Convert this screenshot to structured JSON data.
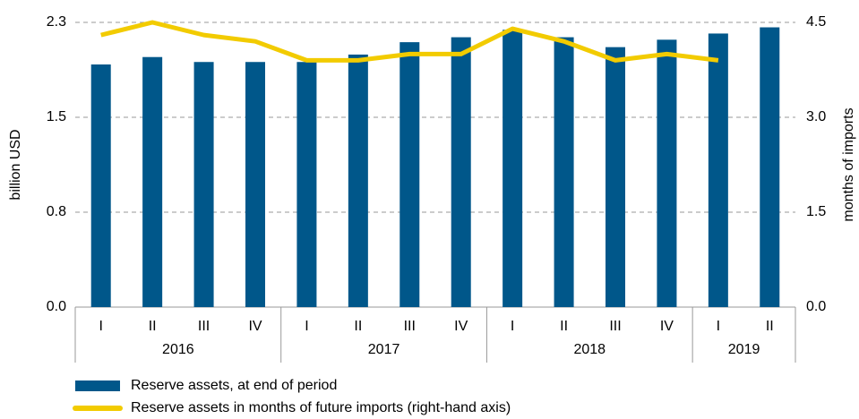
{
  "chart_data": {
    "type": "bar",
    "ylabel": "billion USD",
    "y2label": "months of imports",
    "categories": [
      "I",
      "II",
      "III",
      "IV",
      "I",
      "II",
      "III",
      "IV",
      "I",
      "II",
      "III",
      "IV",
      "I",
      "II"
    ],
    "group_labels": [
      "2016",
      "2017",
      "2018",
      "2019"
    ],
    "ylim": [
      0,
      2.3
    ],
    "yticks": [
      {
        "value": 0,
        "label": "0.0"
      },
      {
        "value": 0.7667,
        "label": "0.8"
      },
      {
        "value": 1.5333,
        "label": "1.5"
      },
      2.3
    ],
    "y2lim": [
      0,
      4.5
    ],
    "y2ticks": [
      {
        "value": 0,
        "label": "0.0"
      },
      1.5,
      {
        "value": 3,
        "label": "3.0"
      },
      4.5
    ],
    "grid": true,
    "series": [
      {
        "name": "Reserve assets, at end of period",
        "type": "bar",
        "color": "#00578a",
        "values": [
          1.96,
          2.02,
          1.98,
          1.98,
          1.98,
          2.04,
          2.14,
          2.18,
          2.24,
          2.18,
          2.1,
          2.16,
          2.21,
          2.26
        ]
      },
      {
        "name": "Reserve assets in months of future imports (right-hand axis)",
        "type": "line",
        "axis": "y2",
        "color": "#f2cb00",
        "values": [
          4.3,
          4.5,
          4.3,
          4.2,
          3.9,
          3.9,
          4.0,
          4.0,
          4.4,
          4.2,
          3.9,
          4.0,
          3.9,
          null
        ]
      }
    ]
  }
}
